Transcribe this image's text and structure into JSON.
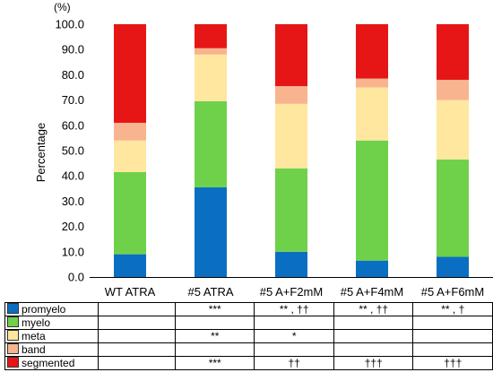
{
  "chart_data": {
    "type": "bar",
    "stacked": true,
    "unit_label": "(%)",
    "ylabel": "Percentage",
    "ylim": [
      0,
      100
    ],
    "yticks": [
      "0.0",
      "10.0",
      "20.0",
      "30.0",
      "40.0",
      "50.0",
      "60.0",
      "70.0",
      "80.0",
      "90.0",
      "100.0"
    ],
    "categories": [
      "WT ATRA",
      "#5 ATRA",
      "#5 A+F2mM",
      "#5 A+F4mM",
      "#5 A+F6mM"
    ],
    "series": [
      {
        "name": "promyelo",
        "color": "#0a6fc2",
        "values": [
          9.0,
          35.5,
          10.0,
          6.5,
          8.0
        ]
      },
      {
        "name": "myelo",
        "color": "#6fd14a",
        "values": [
          32.5,
          34.0,
          33.0,
          47.5,
          38.5
        ]
      },
      {
        "name": "meta",
        "color": "#ffe7a0",
        "values": [
          12.5,
          18.5,
          25.5,
          21.0,
          23.5
        ]
      },
      {
        "name": "band",
        "color": "#f8b48e",
        "values": [
          7.0,
          2.5,
          7.0,
          3.5,
          8.0
        ]
      },
      {
        "name": "segmented",
        "color": "#e61616",
        "values": [
          39.0,
          9.5,
          24.5,
          21.5,
          22.0
        ]
      }
    ]
  },
  "significance_table": {
    "rows": [
      {
        "label": "promyelo",
        "color": "#0a6fc2",
        "marks": [
          "",
          "***",
          "** , ††",
          "** , ††",
          "** , †"
        ]
      },
      {
        "label": "myelo",
        "color": "#6fd14a",
        "marks": [
          "",
          "",
          "",
          "",
          ""
        ]
      },
      {
        "label": "meta",
        "color": "#ffe7a0",
        "marks": [
          "",
          "**",
          "*",
          "",
          ""
        ]
      },
      {
        "label": "band",
        "color": "#f8b48e",
        "marks": [
          "",
          "",
          "",
          "",
          ""
        ]
      },
      {
        "label": "segmented",
        "color": "#e61616",
        "marks": [
          "",
          "***",
          "††",
          "†††",
          "†††"
        ]
      }
    ]
  }
}
